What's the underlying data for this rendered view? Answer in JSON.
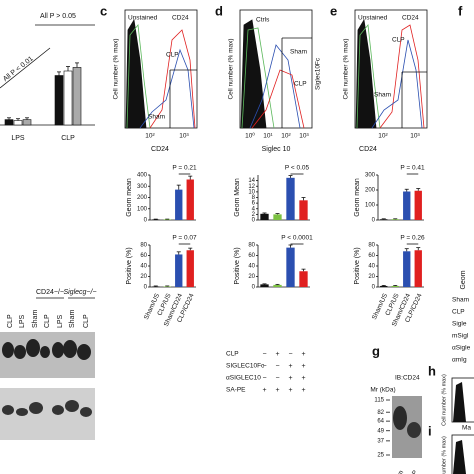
{
  "b": {
    "annotations": [
      "All P > 0.05",
      "All P < 0.01"
    ],
    "categories": [
      "LPS",
      "CLP"
    ],
    "ylim": [
      0,
      100
    ],
    "series": [
      {
        "color": "#111111",
        "values": [
          6,
          55
        ],
        "errors": [
          2,
          4
        ]
      },
      {
        "color": "#ffffff",
        "values": [
          5,
          60
        ],
        "errors": [
          2,
          5
        ]
      },
      {
        "color": "#aaaaaa",
        "values": [
          6,
          64
        ],
        "errors": [
          2,
          5
        ]
      }
    ],
    "blot_groups": [
      "CD24−/−",
      "Siglecg−/−"
    ],
    "lanes": [
      "CLP",
      "LPS",
      "Sham",
      "CLP",
      "LPS",
      "Sham",
      "CLP"
    ]
  },
  "c": {
    "letter": "c",
    "histogram": {
      "ylabel": "Cell number (% max)",
      "xlabel": "CD24",
      "xticks": [
        "10²",
        "10³"
      ],
      "labels": [
        "Unstained",
        "CD24",
        "CLP",
        "Sham"
      ]
    },
    "geom": {
      "ylabel": "Geom mean",
      "ylim": [
        0,
        400
      ],
      "yticks": [
        0,
        100,
        200,
        300,
        400
      ],
      "values": [
        5,
        5,
        270,
        360
      ],
      "errors": [
        3,
        3,
        40,
        30
      ],
      "colors": [
        "#111111",
        "#7cc142",
        "#2b4fb0",
        "#e02020"
      ],
      "p_label": "P = 0.21"
    },
    "positive": {
      "ylabel": "Positive (%)",
      "ylim": [
        0,
        80
      ],
      "yticks": [
        0,
        20,
        40,
        60,
        80
      ],
      "values": [
        1,
        1,
        62,
        70
      ],
      "errors": [
        1,
        1,
        5,
        4
      ],
      "colors": [
        "#111111",
        "#7cc142",
        "#2b4fb0",
        "#e02020"
      ],
      "p_label": "P = 0.07"
    },
    "categories": [
      "Sham/US",
      "CLP/US",
      "Sham/CD24",
      "CLP/CD24"
    ]
  },
  "d": {
    "letter": "d",
    "histogram": {
      "ylabel": "Cell number (% max)",
      "xlabel": "Siglec 10",
      "xticks": [
        "10⁰",
        "10¹",
        "10²",
        "10³"
      ],
      "labels": [
        "Ctrls",
        "Sham",
        "CLP",
        "Siglec10Fc"
      ]
    },
    "geom": {
      "ylabel": "Geom Mean",
      "ylim": [
        0,
        16
      ],
      "yticks": [
        0,
        2,
        4,
        6,
        8,
        10,
        12,
        14
      ],
      "values": [
        2.2,
        2.0,
        15,
        7
      ],
      "errors": [
        0.3,
        0.3,
        0.8,
        1.0
      ],
      "colors": [
        "#111111",
        "#7cc142",
        "#2b4fb0",
        "#e02020"
      ],
      "p_label": "P < 0.05"
    },
    "positive": {
      "ylabel": "Positive (%)",
      "ylim": [
        0,
        80
      ],
      "yticks": [
        0,
        20,
        40,
        60,
        80
      ],
      "values": [
        5,
        4,
        75,
        30
      ],
      "errors": [
        1,
        1,
        5,
        4
      ],
      "colors": [
        "#111111",
        "#7cc142",
        "#2b4fb0",
        "#e02020"
      ],
      "p_label": "P < 0.0001"
    },
    "table": [
      {
        "label": "CLP",
        "cells": [
          "−",
          "+",
          "−",
          "+"
        ]
      },
      {
        "label": "SIGLEC10Fc",
        "cells": [
          "−",
          "−",
          "+",
          "+"
        ]
      },
      {
        "label": "αSIGLEC10",
        "cells": [
          "−",
          "−",
          "+",
          "+"
        ]
      },
      {
        "label": "SA-PE",
        "cells": [
          "+",
          "+",
          "+",
          "+"
        ]
      }
    ]
  },
  "e": {
    "letter": "e",
    "histogram": {
      "ylabel": "Cell number (% max)",
      "xlabel": "CD24",
      "xticks": [
        "10²",
        "10³"
      ],
      "labels": [
        "Unstained",
        "CD24",
        "CLP",
        "Sham"
      ]
    },
    "geom": {
      "ylabel": "Geom mean",
      "ylim": [
        0,
        300
      ],
      "yticks": [
        0,
        100,
        200,
        300
      ],
      "values": [
        5,
        5,
        190,
        195
      ],
      "errors": [
        3,
        3,
        15,
        15
      ],
      "colors": [
        "#111111",
        "#7cc142",
        "#2b4fb0",
        "#e02020"
      ],
      "p_label": "P = 0.41"
    },
    "positive": {
      "ylabel": "Positive (%)",
      "ylim": [
        0,
        80
      ],
      "yticks": [
        0,
        20,
        40,
        60,
        80
      ],
      "values": [
        2,
        2,
        68,
        70
      ],
      "errors": [
        1,
        1,
        5,
        5
      ],
      "colors": [
        "#111111",
        "#7cc142",
        "#2b4fb0",
        "#e02020"
      ],
      "p_label": "P = 0.26"
    },
    "categories": [
      "Sham/US",
      "CLP/US",
      "Sham/CD24",
      "CLP/CD24"
    ]
  },
  "f": {
    "letter": "f",
    "ylabel": "Geom",
    "rows": [
      "Sham",
      "CLP",
      "Sigle",
      "mSigl",
      "αSigle",
      "αmIg"
    ]
  },
  "g": {
    "letter": "g",
    "title": "IB:CD24",
    "marker_label": "Mr (kDa)",
    "markers": [
      115,
      82,
      64,
      49,
      37,
      25
    ],
    "lanes": [
      "Sham",
      "CLP"
    ]
  },
  "h": {
    "letter": "h",
    "ylabel": "Cell number (% max)",
    "xlabel": "Ma"
  },
  "i": {
    "letter": "i",
    "ylabel": "Cell number (% max)"
  }
}
